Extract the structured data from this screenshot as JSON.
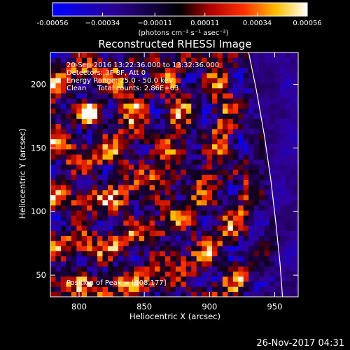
{
  "chart_data": {
    "type": "heatmap",
    "title": "Reconstructed RHESSI Image",
    "xlabel": "Heliocentric X (arcsec)",
    "ylabel": "Heliocentric Y (arcsec)",
    "xlim": [
      778,
      968
    ],
    "ylim": [
      33,
      225
    ],
    "x_ticks": [
      800,
      850,
      900,
      950
    ],
    "y_ticks": [
      50,
      100,
      150,
      200
    ],
    "colorbar": {
      "min": -0.00056,
      "max": 0.00056,
      "tick_values": [
        -0.00056,
        -0.00034,
        -0.00011,
        0.00011,
        0.00034,
        0.00056
      ],
      "tick_labels": [
        "-0.00056",
        "−0.00034",
        "−0.00011",
        "0.00011",
        "0.00034",
        "0.00056"
      ],
      "unit_label": "(photons cm⁻² s⁻¹ asec⁻²)"
    },
    "annotations": {
      "time_range": "20-Sep-2016 13:22:36.000 to 13:32:36.000",
      "detectors": "Detectors: 3F 8F, Att 0",
      "energy_range": "Energy Range: 25.0 - 50.0 keV",
      "clean_counts": "Clean     Total counts: 2.86E+03",
      "peak_position": "Position of Peak = [808,177]"
    },
    "peak": {
      "x": 808,
      "y": 177
    },
    "pixel_size_arcsec": 4,
    "limb_arc": [
      [
        930,
        225
      ],
      [
        936,
        195
      ],
      [
        942,
        160
      ],
      [
        947,
        125
      ],
      [
        951,
        90
      ],
      [
        954,
        60
      ],
      [
        956,
        33
      ]
    ]
  },
  "footer": {
    "timestamp": "26-Nov-2017 04:31"
  }
}
